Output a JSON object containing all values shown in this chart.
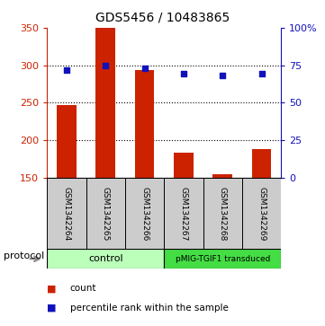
{
  "title": "GDS5456 / 10483865",
  "samples": [
    "GSM1342264",
    "GSM1342265",
    "GSM1342266",
    "GSM1342267",
    "GSM1342268",
    "GSM1342269"
  ],
  "counts": [
    247,
    350,
    293,
    183,
    155,
    188
  ],
  "percentiles": [
    71.5,
    75,
    73,
    69.5,
    68,
    69.5
  ],
  "ylim_left": [
    150,
    350
  ],
  "ylim_right": [
    0,
    100
  ],
  "yticks_left": [
    150,
    200,
    250,
    300,
    350
  ],
  "yticks_right": [
    0,
    25,
    50,
    75,
    100
  ],
  "ytick_labels_right": [
    "0",
    "25",
    "50",
    "75",
    "100%"
  ],
  "bar_color": "#cc2200",
  "dot_color": "#1111bb",
  "protocols": [
    {
      "label": "control",
      "color": "#bbffbb"
    },
    {
      "label": "pMIG-TGIF1 transduced",
      "color": "#44dd44"
    }
  ],
  "legend_items": [
    {
      "color": "#cc2200",
      "label": "count"
    },
    {
      "color": "#1111bb",
      "label": "percentile rank within the sample"
    }
  ],
  "protocol_label": "protocol",
  "background_color": "#ffffff",
  "sample_box_color": "#cccccc",
  "grid_yticks": [
    200,
    250,
    300
  ]
}
